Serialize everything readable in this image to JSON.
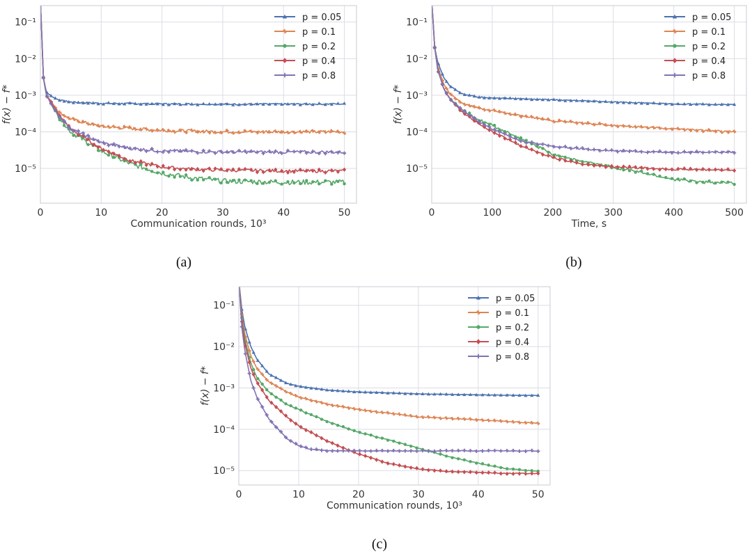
{
  "chart_data": [
    {
      "id": "a",
      "type": "line",
      "y_scale": "log",
      "caption": "(a)",
      "xlabel": "Communication rounds, 10",
      "xlabel_sup": "3",
      "ylabel": "f(x) − f*",
      "xlim": [
        0,
        52
      ],
      "ylim_log10": [
        -5.95,
        -0.55
      ],
      "xticks": [
        0,
        10,
        20,
        30,
        40,
        50
      ],
      "yticks_exp": [
        -1,
        -2,
        -3,
        -4,
        -5
      ],
      "legend_position": "top-right",
      "noise": "high",
      "series": [
        {
          "name": "p = 0.05",
          "color": "#4c72b0",
          "marker": "tri",
          "x": [
            0,
            0.5,
            1,
            2,
            3,
            5,
            10,
            20,
            30,
            40,
            50
          ],
          "y": [
            0.4,
            0.003,
            0.0012,
            0.0009,
            0.00075,
            0.00065,
            0.0006,
            0.00058,
            0.00057,
            0.00057,
            0.00058
          ]
        },
        {
          "name": "p = 0.1",
          "color": "#dd8452",
          "marker": "star",
          "x": [
            0,
            0.5,
            1,
            2,
            3,
            5,
            10,
            20,
            30,
            40,
            50
          ],
          "y": [
            0.4,
            0.003,
            0.001,
            0.0006,
            0.00035,
            0.00022,
            0.00014,
            0.00011,
            0.0001,
            0.0001,
            0.0001
          ]
        },
        {
          "name": "p = 0.2",
          "color": "#55a868",
          "marker": "dot",
          "x": [
            0,
            0.5,
            1,
            2,
            3,
            5,
            10,
            15,
            20,
            25,
            30,
            40,
            50
          ],
          "y": [
            0.4,
            0.003,
            0.001,
            0.0005,
            0.00025,
            0.0001,
            3e-05,
            1.3e-05,
            7.5e-06,
            5.5e-06,
            4.5e-06,
            4.2e-06,
            4.2e-06
          ]
        },
        {
          "name": "p = 0.4",
          "color": "#c44e52",
          "marker": "diamond",
          "x": [
            0,
            0.5,
            1,
            2,
            3,
            5,
            10,
            15,
            20,
            25,
            30,
            40,
            50
          ],
          "y": [
            0.4,
            0.003,
            0.001,
            0.00055,
            0.0003,
            0.00012,
            3.5e-05,
            1.6e-05,
            1.1e-05,
            9.5e-06,
            9e-06,
            8.5e-06,
            8.5e-06
          ]
        },
        {
          "name": "p = 0.8",
          "color": "#8172b2",
          "marker": "plus",
          "x": [
            0,
            0.5,
            1,
            2,
            3,
            5,
            10,
            15,
            20,
            30,
            40,
            50
          ],
          "y": [
            0.4,
            0.003,
            0.001,
            0.0005,
            0.00028,
            0.00012,
            5e-05,
            3.5e-05,
            3e-05,
            2.8e-05,
            2.8e-05,
            2.8e-05
          ]
        }
      ]
    },
    {
      "id": "b",
      "type": "line",
      "y_scale": "log",
      "caption": "(b)",
      "xlabel": "Time, s",
      "xlabel_sup": "",
      "ylabel": "f(x) − f*",
      "xlim": [
        0,
        520
      ],
      "ylim_log10": [
        -5.95,
        -0.55
      ],
      "xticks": [
        0,
        100,
        200,
        300,
        400,
        500
      ],
      "yticks_exp": [
        -1,
        -2,
        -3,
        -4,
        -5
      ],
      "legend_position": "top-right",
      "noise": "medium",
      "series": [
        {
          "name": "p = 0.05",
          "color": "#4c72b0",
          "marker": "tri",
          "x": [
            0,
            5,
            10,
            20,
            30,
            50,
            75,
            100,
            200,
            300,
            400,
            500
          ],
          "y": [
            0.4,
            0.02,
            0.008,
            0.003,
            0.0018,
            0.0011,
            0.0009,
            0.00085,
            0.00075,
            0.00065,
            0.00058,
            0.00055
          ]
        },
        {
          "name": "p = 0.1",
          "color": "#dd8452",
          "marker": "star",
          "x": [
            0,
            5,
            10,
            20,
            30,
            50,
            75,
            100,
            150,
            200,
            300,
            400,
            500
          ],
          "y": [
            0.4,
            0.02,
            0.006,
            0.002,
            0.0011,
            0.0006,
            0.00045,
            0.00038,
            0.00027,
            0.0002,
            0.00015,
            0.00012,
            0.0001
          ]
        },
        {
          "name": "p = 0.2",
          "color": "#55a868",
          "marker": "dot",
          "x": [
            0,
            5,
            10,
            20,
            30,
            50,
            75,
            100,
            150,
            200,
            250,
            300,
            350,
            400,
            450,
            500
          ],
          "y": [
            0.4,
            0.02,
            0.005,
            0.0015,
            0.0008,
            0.0004,
            0.00022,
            0.00015,
            6e-05,
            2.5e-05,
            1.5e-05,
            1.1e-05,
            7.5e-06,
            5e-06,
            4.2e-06,
            4e-06
          ]
        },
        {
          "name": "p = 0.4",
          "color": "#c44e52",
          "marker": "diamond",
          "x": [
            0,
            5,
            10,
            20,
            30,
            50,
            75,
            100,
            150,
            200,
            250,
            300,
            400,
            500
          ],
          "y": [
            0.4,
            0.02,
            0.005,
            0.0015,
            0.0008,
            0.00035,
            0.00018,
            0.0001,
            4e-05,
            2e-05,
            1.3e-05,
            1.1e-05,
            9.5e-06,
            9e-06
          ]
        },
        {
          "name": "p = 0.8",
          "color": "#8172b2",
          "marker": "plus",
          "x": [
            0,
            5,
            10,
            20,
            30,
            50,
            75,
            100,
            150,
            200,
            250,
            300,
            400,
            500
          ],
          "y": [
            0.4,
            0.02,
            0.005,
            0.0015,
            0.0008,
            0.0004,
            0.0002,
            0.00012,
            5.5e-05,
            4e-05,
            3.4e-05,
            3e-05,
            2.8e-05,
            2.8e-05
          ]
        }
      ]
    },
    {
      "id": "c",
      "type": "line",
      "y_scale": "log",
      "caption": "(c)",
      "xlabel": "Communication rounds, 10",
      "xlabel_sup": "3",
      "ylabel": "f(x) − f*",
      "xlim": [
        0,
        52
      ],
      "ylim_log10": [
        -5.35,
        -0.55
      ],
      "xticks": [
        0,
        10,
        20,
        30,
        40,
        50
      ],
      "yticks_exp": [
        -1,
        -2,
        -3,
        -4,
        -5
      ],
      "legend_position": "top-right",
      "noise": "low",
      "series": [
        {
          "name": "p = 0.05",
          "color": "#4c72b0",
          "marker": "tri",
          "x": [
            0,
            0.5,
            1,
            2,
            3,
            5,
            8,
            10,
            15,
            20,
            30,
            40,
            50
          ],
          "y": [
            0.4,
            0.08,
            0.03,
            0.01,
            0.005,
            0.0022,
            0.0013,
            0.0011,
            0.00088,
            0.0008,
            0.00072,
            0.00068,
            0.00066
          ]
        },
        {
          "name": "p = 0.1",
          "color": "#dd8452",
          "marker": "star",
          "x": [
            0,
            0.5,
            1,
            2,
            3,
            5,
            8,
            10,
            15,
            20,
            30,
            40,
            50
          ],
          "y": [
            0.4,
            0.06,
            0.02,
            0.006,
            0.003,
            0.0014,
            0.0008,
            0.0006,
            0.0004,
            0.0003,
            0.0002,
            0.00017,
            0.00014
          ]
        },
        {
          "name": "p = 0.2",
          "color": "#55a868",
          "marker": "dot",
          "x": [
            0,
            0.5,
            1,
            2,
            3,
            5,
            8,
            10,
            15,
            20,
            25,
            30,
            35,
            40,
            45,
            50
          ],
          "y": [
            0.4,
            0.05,
            0.015,
            0.004,
            0.0018,
            0.0008,
            0.0004,
            0.0003,
            0.00015,
            8.5e-05,
            5.5e-05,
            3.5e-05,
            2.2e-05,
            1.5e-05,
            1.1e-05,
            9.5e-06
          ]
        },
        {
          "name": "p = 0.4",
          "color": "#c44e52",
          "marker": "diamond",
          "x": [
            0,
            0.5,
            1,
            2,
            3,
            5,
            8,
            10,
            15,
            20,
            25,
            30,
            35,
            40,
            45,
            50
          ],
          "y": [
            0.4,
            0.04,
            0.012,
            0.003,
            0.0014,
            0.0005,
            0.0002,
            0.00012,
            5e-05,
            2.5e-05,
            1.5e-05,
            1.1e-05,
            9.5e-06,
            9e-06,
            8.5e-06,
            8.5e-06
          ]
        },
        {
          "name": "p = 0.8",
          "color": "#8172b2",
          "marker": "plus",
          "x": [
            0,
            0.5,
            1,
            2,
            3,
            5,
            8,
            10,
            12,
            15,
            20,
            30,
            40,
            50
          ],
          "y": [
            0.4,
            0.03,
            0.008,
            0.0015,
            0.0006,
            0.00018,
            6e-05,
            4e-05,
            3.3e-05,
            3e-05,
            3e-05,
            3e-05,
            3e-05,
            3e-05
          ]
        }
      ]
    }
  ]
}
